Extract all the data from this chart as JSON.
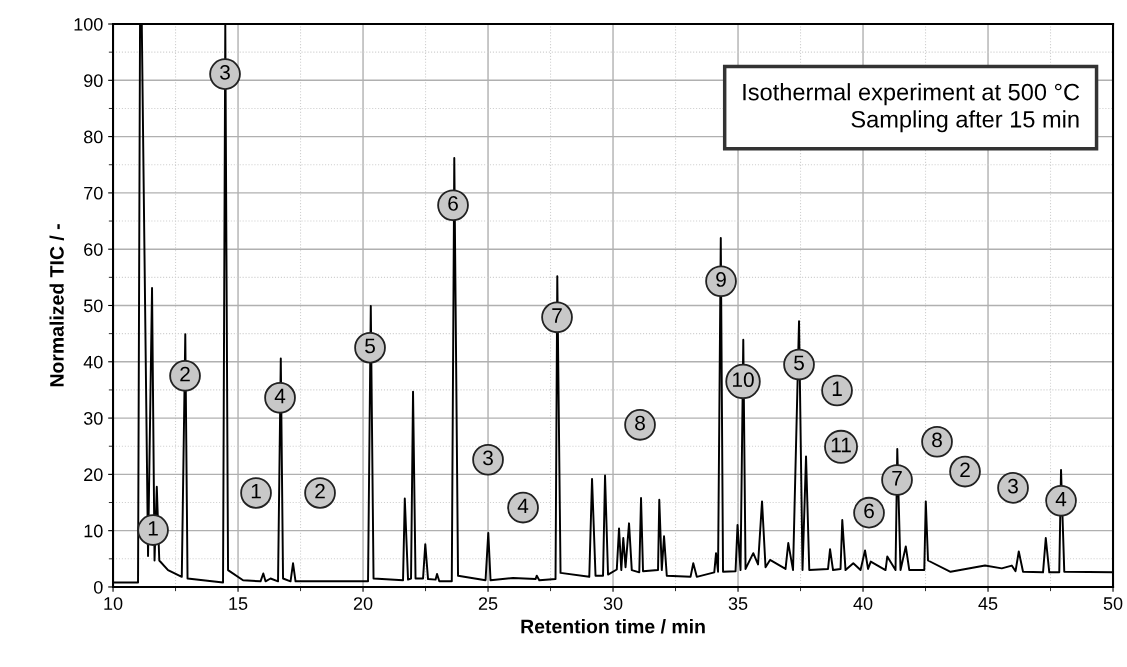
{
  "chart_data": {
    "type": "line",
    "xlabel": "Retention time / min",
    "ylabel": "Normalized TIC / -",
    "xlim": [
      10,
      50
    ],
    "ylim": [
      0,
      100
    ],
    "xticks": [
      10,
      15,
      20,
      25,
      30,
      35,
      40,
      45,
      50
    ],
    "yticks": [
      0,
      10,
      20,
      30,
      40,
      50,
      60,
      70,
      80,
      90,
      100
    ],
    "grid": true,
    "marker": "none",
    "line_style": "solid",
    "series": [
      {
        "color": "#000000",
        "x": [
          10,
          11.0,
          11.08,
          11.15,
          11.4,
          11.56,
          11.66,
          11.75,
          11.85,
          12.2,
          12.75,
          12.89,
          12.98,
          14.4,
          14.49,
          14.6,
          15.2,
          15.9,
          16.01,
          16.1,
          16.3,
          16.6,
          16.71,
          16.8,
          17.1,
          17.2,
          17.3,
          20.2,
          20.31,
          20.42,
          21.6,
          21.67,
          21.8,
          21.92,
          22.0,
          22.1,
          22.4,
          22.49,
          22.6,
          22.9,
          22.96,
          23.05,
          23.55,
          23.65,
          23.8,
          24.9,
          25.01,
          25.1,
          26.0,
          26.9,
          26.95,
          27.05,
          27.7,
          27.77,
          27.9,
          29.05,
          29.16,
          29.3,
          29.6,
          29.68,
          29.8,
          30.15,
          30.24,
          30.33,
          30.41,
          30.5,
          30.64,
          30.75,
          31.05,
          31.12,
          31.2,
          31.8,
          31.85,
          31.95,
          32.04,
          32.15,
          33.1,
          33.21,
          33.35,
          34.05,
          34.12,
          34.2,
          34.31,
          34.4,
          34.9,
          34.98,
          35.1,
          35.21,
          35.3,
          35.61,
          35.8,
          35.96,
          36.1,
          36.28,
          36.9,
          37.01,
          37.2,
          37.44,
          37.58,
          37.72,
          37.85,
          38.6,
          38.68,
          38.8,
          39.1,
          39.17,
          39.3,
          39.61,
          39.9,
          40.08,
          40.2,
          40.31,
          40.9,
          40.97,
          41.3,
          41.37,
          41.5,
          41.71,
          41.85,
          42.45,
          42.51,
          42.6,
          43.5,
          44.88,
          45.55,
          45.95,
          46.1,
          46.23,
          46.4,
          47.2,
          47.31,
          47.45,
          47.85,
          47.92,
          48.05,
          50
        ],
        "values": [
          0.8,
          0.8,
          100,
          100,
          5.5,
          53.1,
          4.7,
          17.8,
          4.7,
          3,
          1.8,
          44.9,
          1.5,
          0.8,
          100,
          3,
          1.2,
          1,
          2.4,
          1,
          1.5,
          1,
          40.6,
          1.5,
          1,
          4.2,
          1,
          1,
          49.9,
          1.5,
          1.2,
          15.7,
          1.3,
          1.5,
          34.7,
          1.5,
          1.5,
          7.6,
          1.4,
          1.3,
          2.3,
          1,
          1,
          76.2,
          2,
          1.2,
          9.6,
          1.2,
          1.6,
          1.4,
          2,
          1.2,
          1.4,
          55.2,
          2.5,
          1.8,
          19.2,
          2,
          2,
          19.8,
          2.2,
          3.1,
          10.4,
          3,
          8.7,
          3.5,
          11.3,
          3,
          2.6,
          15.8,
          2.8,
          3,
          15.5,
          3,
          9.0,
          2,
          1.8,
          4.2,
          1.8,
          2.6,
          6.0,
          2.7,
          62.0,
          2.7,
          2.8,
          11.0,
          3,
          43.9,
          3.2,
          6.0,
          4,
          15.2,
          3.5,
          4.8,
          3.2,
          7.8,
          3,
          47.2,
          3,
          23.2,
          3,
          3.2,
          6.7,
          3,
          3.2,
          11.9,
          3,
          4.2,
          3,
          6.5,
          3.2,
          4.5,
          3,
          5.4,
          3,
          24.5,
          3,
          7.2,
          3,
          3,
          15.2,
          4.7,
          2.7,
          3.8,
          3.3,
          3.8,
          2.8,
          6.3,
          2.7,
          2.6,
          8.7,
          2.6,
          2.6,
          20.8,
          2.7,
          2.6
        ]
      }
    ],
    "annotations": [
      "Isothermal experiment at 500 °C\nSampling after 15 min",
      {
        "text": "1",
        "x": 11.6,
        "y": 10.1
      },
      {
        "text": "2",
        "x": 12.88,
        "y": 37.5
      },
      {
        "text": "3",
        "x": 14.48,
        "y": 91.1
      },
      {
        "text": "4",
        "x": 16.68,
        "y": 33.6
      },
      {
        "text": "5",
        "x": 20.28,
        "y": 42.5
      },
      {
        "text": "6",
        "x": 23.6,
        "y": 67.8
      },
      {
        "text": "7",
        "x": 27.76,
        "y": 47.9
      },
      {
        "text": "8",
        "x": 31.08,
        "y": 28.8
      },
      {
        "text": "9",
        "x": 34.32,
        "y": 54.3
      },
      {
        "text": "10",
        "x": 35.2,
        "y": 36.5
      },
      {
        "text": "11",
        "x": 39.12,
        "y": 24.9
      },
      {
        "text": "1",
        "x": 15.72,
        "y": 16.7
      },
      {
        "text": "2",
        "x": 18.28,
        "y": 16.7
      },
      {
        "text": "3",
        "x": 25.0,
        "y": 22.6
      },
      {
        "text": "4",
        "x": 26.4,
        "y": 14.1
      },
      {
        "text": "5",
        "x": 37.44,
        "y": 39.5
      },
      {
        "text": "6",
        "x": 40.24,
        "y": 13.2
      },
      {
        "text": "7",
        "x": 41.36,
        "y": 19.0
      },
      {
        "text": "8",
        "x": 42.96,
        "y": 25.8
      },
      {
        "text": "1",
        "x": 38.96,
        "y": 34.9
      },
      {
        "text": "2",
        "x": 44.08,
        "y": 20.5
      },
      {
        "text": "3",
        "x": 46.0,
        "y": 17.6
      },
      {
        "text": "4",
        "x": 47.92,
        "y": 15.3
      }
    ]
  }
}
